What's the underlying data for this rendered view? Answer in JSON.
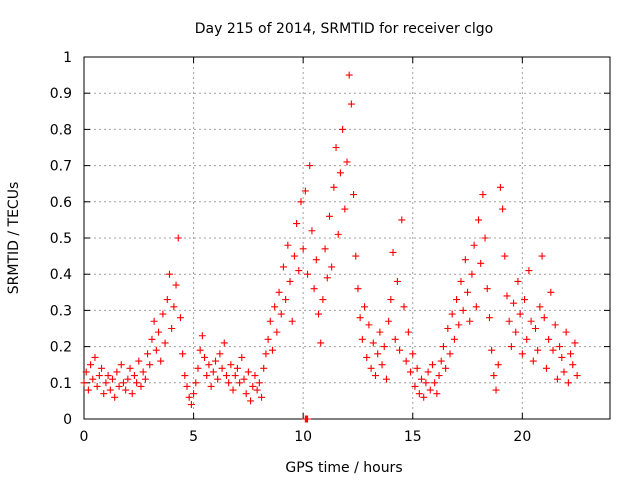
{
  "chart_data": {
    "type": "scatter",
    "title": "Day 215 of 2014, SRMTID for receiver clgo",
    "xlabel": "GPS time / hours",
    "ylabel": "SRMTID / TECUs",
    "xlim": [
      0,
      24
    ],
    "ylim": [
      0,
      1
    ],
    "xticks": [
      0,
      5,
      10,
      15,
      20
    ],
    "xtick_labels": [
      "0",
      "5",
      "10",
      "15",
      "20"
    ],
    "yticks": [
      0,
      0.1,
      0.2,
      0.3,
      0.4,
      0.5,
      0.6,
      0.7,
      0.8,
      0.9,
      1
    ],
    "ytick_labels": [
      "0",
      "0.1",
      "0.2",
      "0.3",
      "0.4",
      "0.5",
      "0.6",
      "0.7",
      "0.8",
      "0.9",
      "1"
    ],
    "grid": true,
    "marker": "+",
    "color": "#ff0000",
    "series": [
      {
        "name": "clgo",
        "points": [
          [
            0.0,
            0.1
          ],
          [
            0.1,
            0.13
          ],
          [
            0.2,
            0.08
          ],
          [
            0.3,
            0.15
          ],
          [
            0.4,
            0.11
          ],
          [
            0.5,
            0.17
          ],
          [
            0.6,
            0.09
          ],
          [
            0.7,
            0.12
          ],
          [
            0.8,
            0.14
          ],
          [
            0.9,
            0.07
          ],
          [
            1.0,
            0.1
          ],
          [
            1.1,
            0.12
          ],
          [
            1.2,
            0.08
          ],
          [
            1.3,
            0.11
          ],
          [
            1.4,
            0.06
          ],
          [
            1.5,
            0.13
          ],
          [
            1.6,
            0.09
          ],
          [
            1.7,
            0.15
          ],
          [
            1.8,
            0.1
          ],
          [
            1.9,
            0.08
          ],
          [
            2.0,
            0.11
          ],
          [
            2.1,
            0.14
          ],
          [
            2.2,
            0.07
          ],
          [
            2.3,
            0.12
          ],
          [
            2.4,
            0.1
          ],
          [
            2.5,
            0.16
          ],
          [
            2.6,
            0.09
          ],
          [
            2.7,
            0.13
          ],
          [
            2.8,
            0.11
          ],
          [
            2.9,
            0.18
          ],
          [
            3.0,
            0.15
          ],
          [
            3.1,
            0.22
          ],
          [
            3.2,
            0.27
          ],
          [
            3.3,
            0.19
          ],
          [
            3.4,
            0.24
          ],
          [
            3.5,
            0.16
          ],
          [
            3.6,
            0.29
          ],
          [
            3.7,
            0.21
          ],
          [
            3.8,
            0.33
          ],
          [
            3.9,
            0.4
          ],
          [
            4.0,
            0.25
          ],
          [
            4.1,
            0.31
          ],
          [
            4.2,
            0.37
          ],
          [
            4.3,
            0.5
          ],
          [
            4.4,
            0.28
          ],
          [
            4.5,
            0.18
          ],
          [
            4.6,
            0.12
          ],
          [
            4.7,
            0.09
          ],
          [
            4.8,
            0.06
          ],
          [
            4.9,
            0.04
          ],
          [
            5.0,
            0.07
          ],
          [
            5.1,
            0.1
          ],
          [
            5.2,
            0.14
          ],
          [
            5.3,
            0.19
          ],
          [
            5.4,
            0.23
          ],
          [
            5.5,
            0.17
          ],
          [
            5.6,
            0.12
          ],
          [
            5.7,
            0.15
          ],
          [
            5.8,
            0.09
          ],
          [
            5.9,
            0.13
          ],
          [
            6.0,
            0.16
          ],
          [
            6.1,
            0.11
          ],
          [
            6.2,
            0.18
          ],
          [
            6.3,
            0.14
          ],
          [
            6.4,
            0.21
          ],
          [
            6.5,
            0.12
          ],
          [
            6.6,
            0.1
          ],
          [
            6.7,
            0.15
          ],
          [
            6.8,
            0.08
          ],
          [
            6.9,
            0.12
          ],
          [
            7.0,
            0.14
          ],
          [
            7.1,
            0.1
          ],
          [
            7.2,
            0.17
          ],
          [
            7.3,
            0.11
          ],
          [
            7.4,
            0.07
          ],
          [
            7.5,
            0.13
          ],
          [
            7.6,
            0.05
          ],
          [
            7.7,
            0.09
          ],
          [
            7.8,
            0.12
          ],
          [
            7.9,
            0.08
          ],
          [
            8.0,
            0.1
          ],
          [
            8.1,
            0.06
          ],
          [
            8.2,
            0.14
          ],
          [
            8.3,
            0.18
          ],
          [
            8.4,
            0.22
          ],
          [
            8.5,
            0.27
          ],
          [
            8.6,
            0.19
          ],
          [
            8.7,
            0.31
          ],
          [
            8.8,
            0.24
          ],
          [
            8.9,
            0.35
          ],
          [
            9.0,
            0.29
          ],
          [
            9.1,
            0.42
          ],
          [
            9.2,
            0.33
          ],
          [
            9.3,
            0.48
          ],
          [
            9.4,
            0.38
          ],
          [
            9.5,
            0.27
          ],
          [
            9.6,
            0.45
          ],
          [
            9.7,
            0.54
          ],
          [
            9.8,
            0.41
          ],
          [
            9.9,
            0.6
          ],
          [
            10.0,
            0.47
          ],
          [
            10.1,
            0.63
          ],
          [
            10.2,
            0.4
          ],
          [
            10.3,
            0.7
          ],
          [
            10.4,
            0.52
          ],
          [
            10.5,
            0.36
          ],
          [
            10.6,
            0.44
          ],
          [
            10.7,
            0.29
          ],
          [
            10.8,
            0.21
          ],
          [
            10.9,
            0.33
          ],
          [
            11.0,
            0.47
          ],
          [
            11.1,
            0.39
          ],
          [
            11.2,
            0.56
          ],
          [
            11.3,
            0.42
          ],
          [
            11.4,
            0.64
          ],
          [
            11.5,
            0.75
          ],
          [
            11.6,
            0.51
          ],
          [
            11.7,
            0.68
          ],
          [
            11.8,
            0.8
          ],
          [
            11.9,
            0.58
          ],
          [
            12.0,
            0.71
          ],
          [
            12.1,
            0.95
          ],
          [
            12.2,
            0.87
          ],
          [
            12.3,
            0.62
          ],
          [
            12.4,
            0.45
          ],
          [
            12.5,
            0.36
          ],
          [
            12.6,
            0.28
          ],
          [
            12.7,
            0.22
          ],
          [
            12.8,
            0.31
          ],
          [
            12.9,
            0.17
          ],
          [
            13.0,
            0.26
          ],
          [
            13.1,
            0.14
          ],
          [
            13.2,
            0.21
          ],
          [
            13.3,
            0.12
          ],
          [
            13.4,
            0.18
          ],
          [
            13.5,
            0.24
          ],
          [
            13.6,
            0.15
          ],
          [
            13.7,
            0.2
          ],
          [
            13.8,
            0.11
          ],
          [
            13.9,
            0.27
          ],
          [
            14.0,
            0.33
          ],
          [
            14.1,
            0.46
          ],
          [
            14.2,
            0.22
          ],
          [
            14.3,
            0.38
          ],
          [
            14.4,
            0.19
          ],
          [
            14.5,
            0.55
          ],
          [
            14.6,
            0.31
          ],
          [
            14.7,
            0.16
          ],
          [
            14.8,
            0.24
          ],
          [
            14.9,
            0.13
          ],
          [
            15.0,
            0.18
          ],
          [
            15.1,
            0.09
          ],
          [
            15.2,
            0.14
          ],
          [
            15.3,
            0.07
          ],
          [
            15.4,
            0.11
          ],
          [
            15.5,
            0.06
          ],
          [
            15.6,
            0.1
          ],
          [
            15.7,
            0.13
          ],
          [
            15.8,
            0.08
          ],
          [
            15.9,
            0.15
          ],
          [
            16.0,
            0.1
          ],
          [
            16.1,
            0.07
          ],
          [
            16.2,
            0.12
          ],
          [
            16.3,
            0.16
          ],
          [
            16.4,
            0.2
          ],
          [
            16.5,
            0.14
          ],
          [
            16.6,
            0.25
          ],
          [
            16.7,
            0.18
          ],
          [
            16.8,
            0.29
          ],
          [
            16.9,
            0.22
          ],
          [
            17.0,
            0.33
          ],
          [
            17.1,
            0.26
          ],
          [
            17.2,
            0.38
          ],
          [
            17.3,
            0.3
          ],
          [
            17.4,
            0.44
          ],
          [
            17.5,
            0.35
          ],
          [
            17.6,
            0.27
          ],
          [
            17.7,
            0.4
          ],
          [
            17.8,
            0.48
          ],
          [
            17.9,
            0.31
          ],
          [
            18.0,
            0.55
          ],
          [
            18.1,
            0.43
          ],
          [
            18.2,
            0.62
          ],
          [
            18.3,
            0.5
          ],
          [
            18.4,
            0.36
          ],
          [
            18.5,
            0.28
          ],
          [
            18.6,
            0.19
          ],
          [
            18.7,
            0.12
          ],
          [
            18.8,
            0.08
          ],
          [
            18.9,
            0.15
          ],
          [
            19.0,
            0.64
          ],
          [
            19.1,
            0.58
          ],
          [
            19.2,
            0.45
          ],
          [
            19.3,
            0.34
          ],
          [
            19.4,
            0.27
          ],
          [
            19.5,
            0.2
          ],
          [
            19.6,
            0.32
          ],
          [
            19.7,
            0.24
          ],
          [
            19.8,
            0.38
          ],
          [
            19.9,
            0.29
          ],
          [
            20.0,
            0.18
          ],
          [
            20.1,
            0.33
          ],
          [
            20.2,
            0.22
          ],
          [
            20.3,
            0.41
          ],
          [
            20.4,
            0.27
          ],
          [
            20.5,
            0.16
          ],
          [
            20.6,
            0.25
          ],
          [
            20.7,
            0.19
          ],
          [
            20.8,
            0.31
          ],
          [
            20.9,
            0.45
          ],
          [
            21.0,
            0.28
          ],
          [
            21.1,
            0.14
          ],
          [
            21.2,
            0.22
          ],
          [
            21.3,
            0.35
          ],
          [
            21.4,
            0.19
          ],
          [
            21.5,
            0.26
          ],
          [
            21.6,
            0.11
          ],
          [
            21.7,
            0.2
          ],
          [
            21.8,
            0.17
          ],
          [
            21.9,
            0.13
          ],
          [
            22.0,
            0.24
          ],
          [
            22.1,
            0.1
          ],
          [
            22.2,
            0.18
          ],
          [
            22.3,
            0.15
          ],
          [
            22.4,
            0.21
          ],
          [
            22.5,
            0.12
          ],
          [
            10.1,
            0.0
          ],
          [
            10.15,
            0.0
          ],
          [
            10.2,
            0.0
          ]
        ]
      }
    ]
  }
}
